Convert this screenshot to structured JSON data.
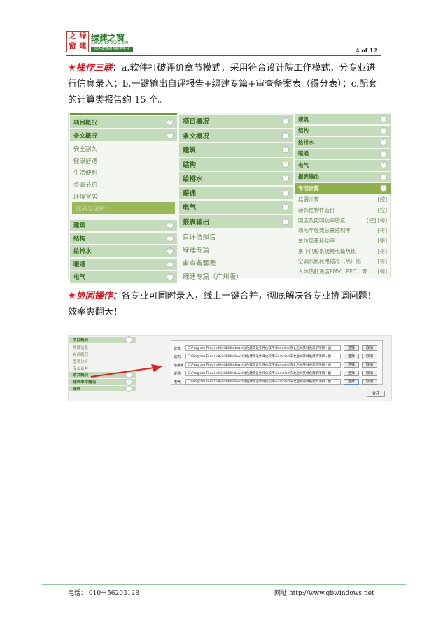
{
  "header": {
    "logo_text": "绿建之窗",
    "logo_seal": [
      "之",
      "绿",
      "窗",
      "建"
    ],
    "logo_url": "GBWINDOWS.CN",
    "logo_slogan": "绿色建筑综合服务平台",
    "page_number": "4 of 12"
  },
  "section1": {
    "highlight": "★操作三联",
    "text": "：a.软件打破评价章节模式，采用符合设计院工作模式，分专业进行信息录入；b.一键输出自评报告+绿建专篇+审查备案表（得分表）；c.配套的计算类报告约 15 个。"
  },
  "screenshot1": {
    "col1": {
      "headers_top": [
        {
          "label": "项目概况",
          "icon": "chevron-down"
        },
        {
          "label": "条文概况",
          "icon": "chevron-up"
        }
      ],
      "items": [
        "安全耐久",
        "健康舒适",
        "生活便利",
        "资源节约",
        "环境宜居",
        "提高与创新"
      ],
      "selected_item": "提高与创新",
      "headers_bottom": [
        "建筑",
        "结构",
        "给排水",
        "暖通",
        "电气"
      ]
    },
    "col2": {
      "headers": [
        "项目概况",
        "条文概况",
        "建筑",
        "结构",
        "给排水",
        "暖通",
        "电气",
        "报表输出"
      ],
      "items": [
        "自评估报告",
        "绿建专篇",
        "审查备案表",
        "绿建专篇（广州版）"
      ]
    },
    "col3": {
      "headers": [
        "建筑",
        "结构",
        "给排水",
        "暖通",
        "电气",
        "报表输出"
      ],
      "active_header": "专项计算",
      "items": [
        {
          "label": "结露计算",
          "tag": "[控]"
        },
        {
          "label": "装饰性构件造价",
          "tag": "[控]"
        },
        {
          "label": "照度及照明功率密度",
          "tag": "[控] [得]"
        },
        {
          "label": "场地年径流总量控制率",
          "tag": "[得]"
        },
        {
          "label": "单位风量耗功率",
          "tag": "[得]"
        },
        {
          "label": "集中供暖系统耗电输热比",
          "tag": "[得]"
        },
        {
          "label": "空调系统耗电输冷（热）比",
          "tag": "[得]"
        },
        {
          "label": "人体热舒适度PMV、PPD计算",
          "tag": "[得]"
        }
      ]
    }
  },
  "section2": {
    "highlight": "★协同操作：",
    "text": "各专业可同时录入，线上一键合并，彻底解决各专业协调问题！效率爽翻天！"
  },
  "screenshot2": {
    "sidebar": {
      "header": "项目概况",
      "items": [
        "项目信息",
        "自评概况",
        "图表分析",
        "专业合并"
      ],
      "headers": [
        "条文概况",
        "建筑单体概况",
        "建筑"
      ]
    },
    "rows": [
      {
        "label": "建筑"
      },
      {
        "label": "结构"
      },
      {
        "label": "给排水"
      },
      {
        "label": "暖通"
      },
      {
        "label": "电气"
      }
    ],
    "path": "C:\\Program Files (x86)\\GBWindows\\绿色建筑设计评价软件\\Samples\\东北台州某绿色建筑项目 - 副",
    "select_label": "选择",
    "cancel_label": "取消",
    "merge_label": "合并",
    "arrow_color": "#e02020"
  },
  "footer": {
    "phone": "电话： 010－56203128",
    "website": "网址 http://www.gbwindows.net"
  }
}
